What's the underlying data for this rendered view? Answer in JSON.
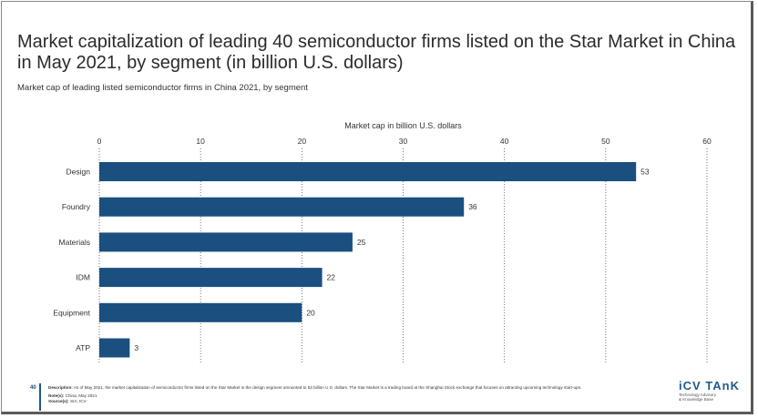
{
  "page": {
    "title": "Market capitalization of leading 40 semiconductor firms listed on the Star Market in China in May 2021, by segment (in billion U.S. dollars)",
    "subtitle": "Market cap of leading listed semiconductor firms in China 2021, by segment",
    "page_number": "40",
    "description_label": "Description:",
    "description": "As of May 2021, the market capitalization of semiconductor firms listed on the Star Market in the design segment amounted to 53 billion U.S. dollars. The Star Market is a trading board at the Shanghai Stock exchange that focuses on attracting upcoming technology start-ups.",
    "notes_label": "Note(s):",
    "notes": "China; May 2021",
    "source_label": "Source(s):",
    "source": "SIA; ICV",
    "logo_name": "iCV TAnK",
    "logo_tagline_1": "Technology Advisory",
    "logo_tagline_2": "& Knowledge Base"
  },
  "colors": {
    "bar": "#1a4f80",
    "title": "#2b2b2b",
    "grid": "#555555"
  },
  "chart_data": {
    "type": "bar",
    "orientation": "horizontal",
    "title": "Market cap in billion U.S. dollars",
    "categories": [
      "Design",
      "Foundry",
      "Materials",
      "IDM",
      "Equipment",
      "ATP"
    ],
    "values": [
      53,
      36,
      25,
      22,
      20,
      3
    ],
    "xlim": [
      0,
      60
    ],
    "xticks": [
      0,
      10,
      20,
      30,
      40,
      50,
      60
    ],
    "grid": "vertical dotted",
    "axis_position": "top",
    "data_labels": true
  }
}
